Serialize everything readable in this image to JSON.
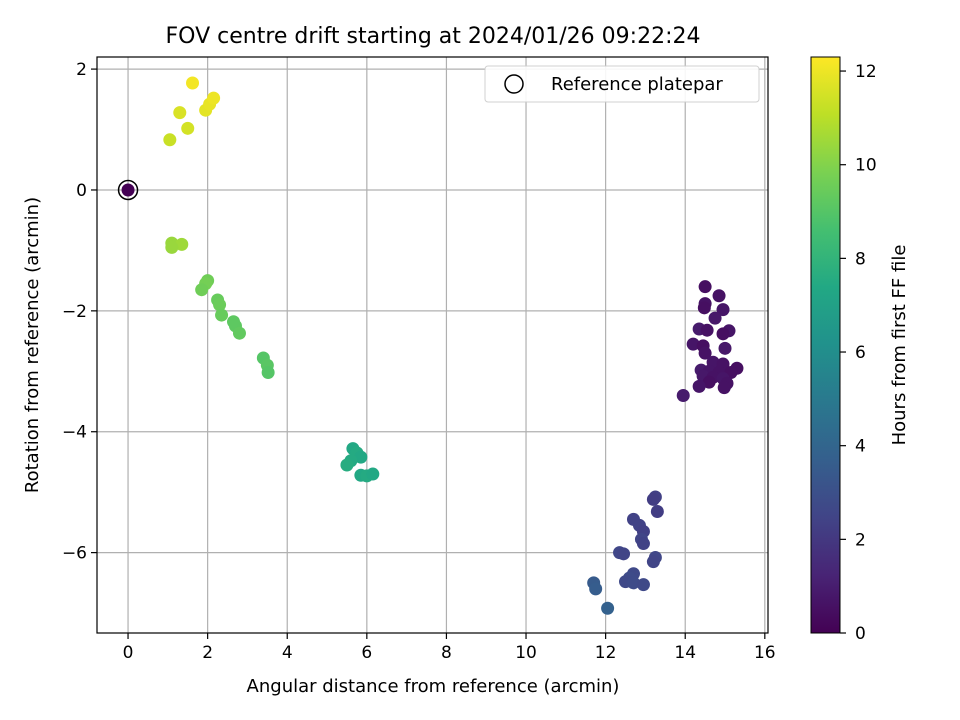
{
  "chart_data": {
    "type": "scatter",
    "title": "FOV centre drift starting at 2024/01/26 09:22:24",
    "xlabel": "Angular distance from reference (arcmin)",
    "ylabel": "Rotation from reference (arcmin)",
    "xlim": [
      -0.78,
      16.08
    ],
    "ylim": [
      -7.33,
      2.2
    ],
    "xticks": [
      0,
      2,
      4,
      6,
      8,
      10,
      12,
      14,
      16
    ],
    "yticks": [
      -6,
      -4,
      -2,
      0,
      2
    ],
    "grid": true,
    "legend": {
      "placement": "top-right",
      "entries": [
        "Reference platepar"
      ]
    },
    "colorbar": {
      "label": "Hours from first FF file",
      "colormap": "viridis",
      "range": [
        0,
        12.3
      ],
      "ticks": [
        0,
        2,
        4,
        6,
        8,
        10,
        12
      ]
    },
    "reference_point": {
      "x": 0,
      "y": 0,
      "c": 0
    },
    "points": [
      {
        "x": 14.5,
        "y": -1.6,
        "c": 0.5
      },
      {
        "x": 14.85,
        "y": -1.75,
        "c": 0.6
      },
      {
        "x": 14.5,
        "y": -1.88,
        "c": 0.6
      },
      {
        "x": 14.48,
        "y": -1.95,
        "c": 0.5
      },
      {
        "x": 14.95,
        "y": -1.98,
        "c": 0.7
      },
      {
        "x": 14.75,
        "y": -2.12,
        "c": 0.8
      },
      {
        "x": 14.35,
        "y": -2.3,
        "c": 0.9
      },
      {
        "x": 14.55,
        "y": -2.32,
        "c": 0.6
      },
      {
        "x": 15.1,
        "y": -2.33,
        "c": 0.7
      },
      {
        "x": 14.95,
        "y": -2.38,
        "c": 0.5
      },
      {
        "x": 14.2,
        "y": -2.55,
        "c": 0.7
      },
      {
        "x": 14.45,
        "y": -2.58,
        "c": 0.5
      },
      {
        "x": 15.0,
        "y": -2.62,
        "c": 0.8
      },
      {
        "x": 14.5,
        "y": -2.7,
        "c": 0.6
      },
      {
        "x": 14.7,
        "y": -2.85,
        "c": 0.7
      },
      {
        "x": 14.95,
        "y": -2.88,
        "c": 0.6
      },
      {
        "x": 15.3,
        "y": -2.95,
        "c": 0.5
      },
      {
        "x": 14.4,
        "y": -2.98,
        "c": 0.9
      },
      {
        "x": 14.6,
        "y": -3.0,
        "c": 0.7
      },
      {
        "x": 14.85,
        "y": -3.02,
        "c": 0.6
      },
      {
        "x": 15.15,
        "y": -3.02,
        "c": 0.5
      },
      {
        "x": 14.45,
        "y": -3.08,
        "c": 0.8
      },
      {
        "x": 14.7,
        "y": -3.1,
        "c": 0.6
      },
      {
        "x": 14.95,
        "y": -3.12,
        "c": 0.7
      },
      {
        "x": 14.6,
        "y": -3.18,
        "c": 0.5
      },
      {
        "x": 15.05,
        "y": -3.2,
        "c": 0.6
      },
      {
        "x": 14.35,
        "y": -3.25,
        "c": 0.7
      },
      {
        "x": 14.98,
        "y": -3.27,
        "c": 0.6
      },
      {
        "x": 13.95,
        "y": -3.4,
        "c": 0.9
      },
      {
        "x": 13.25,
        "y": -5.08,
        "c": 2.3
      },
      {
        "x": 13.2,
        "y": -5.12,
        "c": 2.2
      },
      {
        "x": 13.3,
        "y": -5.32,
        "c": 2.2
      },
      {
        "x": 12.7,
        "y": -5.45,
        "c": 2.4
      },
      {
        "x": 12.85,
        "y": -5.55,
        "c": 2.4
      },
      {
        "x": 12.95,
        "y": -5.65,
        "c": 2.3
      },
      {
        "x": 12.9,
        "y": -5.78,
        "c": 2.5
      },
      {
        "x": 12.95,
        "y": -5.85,
        "c": 2.4
      },
      {
        "x": 12.35,
        "y": -6.0,
        "c": 2.6
      },
      {
        "x": 12.45,
        "y": -6.02,
        "c": 2.5
      },
      {
        "x": 13.25,
        "y": -6.08,
        "c": 2.6
      },
      {
        "x": 13.2,
        "y": -6.15,
        "c": 2.5
      },
      {
        "x": 12.7,
        "y": -6.35,
        "c": 2.7
      },
      {
        "x": 12.6,
        "y": -6.42,
        "c": 2.8
      },
      {
        "x": 12.5,
        "y": -6.48,
        "c": 2.7
      },
      {
        "x": 12.7,
        "y": -6.5,
        "c": 2.8
      },
      {
        "x": 12.95,
        "y": -6.53,
        "c": 2.7
      },
      {
        "x": 11.7,
        "y": -6.5,
        "c": 3.5
      },
      {
        "x": 11.75,
        "y": -6.6,
        "c": 3.6
      },
      {
        "x": 12.05,
        "y": -6.92,
        "c": 3.8
      },
      {
        "x": 5.65,
        "y": -4.28,
        "c": 7.4
      },
      {
        "x": 5.75,
        "y": -4.35,
        "c": 7.5
      },
      {
        "x": 5.85,
        "y": -4.42,
        "c": 7.4
      },
      {
        "x": 5.6,
        "y": -4.48,
        "c": 7.5
      },
      {
        "x": 5.5,
        "y": -4.55,
        "c": 7.6
      },
      {
        "x": 5.85,
        "y": -4.72,
        "c": 7.4
      },
      {
        "x": 6.0,
        "y": -4.73,
        "c": 7.5
      },
      {
        "x": 6.15,
        "y": -4.7,
        "c": 7.4
      },
      {
        "x": 3.4,
        "y": -2.78,
        "c": 9.0
      },
      {
        "x": 3.5,
        "y": -2.9,
        "c": 9.1
      },
      {
        "x": 3.52,
        "y": -3.02,
        "c": 9.0
      },
      {
        "x": 2.7,
        "y": -2.25,
        "c": 9.2
      },
      {
        "x": 2.8,
        "y": -2.37,
        "c": 9.3
      },
      {
        "x": 2.65,
        "y": -2.18,
        "c": 9.2
      },
      {
        "x": 2.25,
        "y": -1.82,
        "c": 9.4
      },
      {
        "x": 2.3,
        "y": -1.9,
        "c": 9.5
      },
      {
        "x": 2.35,
        "y": -2.07,
        "c": 9.4
      },
      {
        "x": 2.0,
        "y": -1.5,
        "c": 9.6
      },
      {
        "x": 1.95,
        "y": -1.55,
        "c": 9.7
      },
      {
        "x": 1.85,
        "y": -1.65,
        "c": 9.6
      },
      {
        "x": 1.1,
        "y": -0.88,
        "c": 10.4
      },
      {
        "x": 1.35,
        "y": -0.9,
        "c": 10.5
      },
      {
        "x": 1.1,
        "y": -0.95,
        "c": 10.4
      },
      {
        "x": 1.05,
        "y": 0.83,
        "c": 11.3
      },
      {
        "x": 1.5,
        "y": 1.02,
        "c": 11.5
      },
      {
        "x": 1.3,
        "y": 1.28,
        "c": 11.6
      },
      {
        "x": 1.95,
        "y": 1.32,
        "c": 11.8
      },
      {
        "x": 2.05,
        "y": 1.42,
        "c": 11.9
      },
      {
        "x": 2.15,
        "y": 1.52,
        "c": 12.0
      },
      {
        "x": 1.62,
        "y": 1.77,
        "c": 12.1
      }
    ]
  }
}
